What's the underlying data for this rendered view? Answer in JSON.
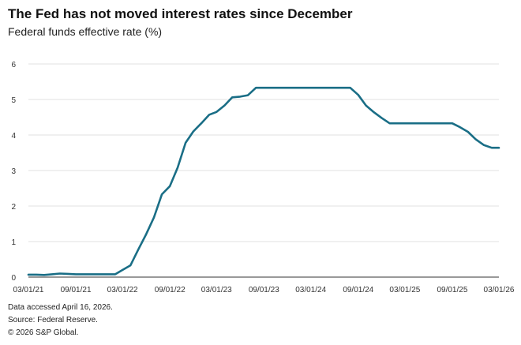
{
  "title": "The Fed has not moved interest rates since December",
  "subtitle": "Federal funds effective rate (%)",
  "footnotes": {
    "accessed": "Data accessed April 16, 2026.",
    "source": "Source: Federal Reserve.",
    "copyright": "© 2026 S&P Global."
  },
  "colors": {
    "line": "#1a6e86",
    "grid": "#d9d9d9",
    "axis": "#333333"
  },
  "chart_data": {
    "type": "line",
    "title": "The Fed has not moved interest rates since December",
    "subtitle": "Federal funds effective rate (%)",
    "xlabel": "",
    "ylabel": "",
    "ylim": [
      0,
      6
    ],
    "xlim": [
      "2021-03-01",
      "2026-03-01"
    ],
    "grid": true,
    "legend": "none",
    "yticks": [
      0,
      1,
      2,
      3,
      4,
      5,
      6
    ],
    "xticks": [
      "03/01/21",
      "09/01/21",
      "03/01/22",
      "09/01/22",
      "03/01/23",
      "09/01/23",
      "03/01/24",
      "09/01/24",
      "03/01/25",
      "09/01/25",
      "03/01/26"
    ],
    "xtick_dates": [
      "2021-03-01",
      "2021-09-01",
      "2022-03-01",
      "2022-09-01",
      "2023-03-01",
      "2023-09-01",
      "2024-03-01",
      "2024-09-01",
      "2025-03-01",
      "2025-09-01",
      "2026-03-01"
    ],
    "series": [
      {
        "x": [
          "2021-03-01",
          "2021-04-01",
          "2021-05-01",
          "2021-06-01",
          "2021-07-01",
          "2021-08-01",
          "2021-09-01",
          "2021-10-01",
          "2021-11-01",
          "2021-12-01",
          "2022-01-01",
          "2022-02-01",
          "2022-03-01",
          "2022-04-01",
          "2022-05-01",
          "2022-06-01",
          "2022-07-01",
          "2022-08-01",
          "2022-09-01",
          "2022-10-01",
          "2022-11-01",
          "2022-12-01",
          "2023-01-01",
          "2023-02-01",
          "2023-03-01",
          "2023-04-01",
          "2023-05-01",
          "2023-06-01",
          "2023-07-01",
          "2023-08-01",
          "2023-09-01",
          "2023-10-01",
          "2023-11-01",
          "2023-12-01",
          "2024-01-01",
          "2024-02-01",
          "2024-03-01",
          "2024-04-01",
          "2024-05-01",
          "2024-06-01",
          "2024-07-01",
          "2024-08-01",
          "2024-09-01",
          "2024-10-01",
          "2024-11-01",
          "2024-12-01",
          "2025-01-01",
          "2025-02-01",
          "2025-03-01",
          "2025-04-01",
          "2025-05-01",
          "2025-06-01",
          "2025-07-01",
          "2025-08-01",
          "2025-09-01",
          "2025-10-01",
          "2025-11-01",
          "2025-12-01",
          "2026-01-01",
          "2026-02-01",
          "2026-03-01"
        ],
        "values": [
          0.07,
          0.07,
          0.06,
          0.08,
          0.1,
          0.09,
          0.08,
          0.08,
          0.08,
          0.08,
          0.08,
          0.08,
          0.2,
          0.33,
          0.77,
          1.21,
          1.68,
          2.33,
          2.56,
          3.08,
          3.78,
          4.1,
          4.33,
          4.57,
          4.65,
          4.83,
          5.06,
          5.08,
          5.12,
          5.33,
          5.33,
          5.33,
          5.33,
          5.33,
          5.33,
          5.33,
          5.33,
          5.33,
          5.33,
          5.33,
          5.33,
          5.33,
          5.13,
          4.83,
          4.64,
          4.48,
          4.33,
          4.33,
          4.33,
          4.33,
          4.33,
          4.33,
          4.33,
          4.33,
          4.33,
          4.22,
          4.09,
          3.88,
          3.72,
          3.64,
          3.64
        ]
      }
    ]
  }
}
